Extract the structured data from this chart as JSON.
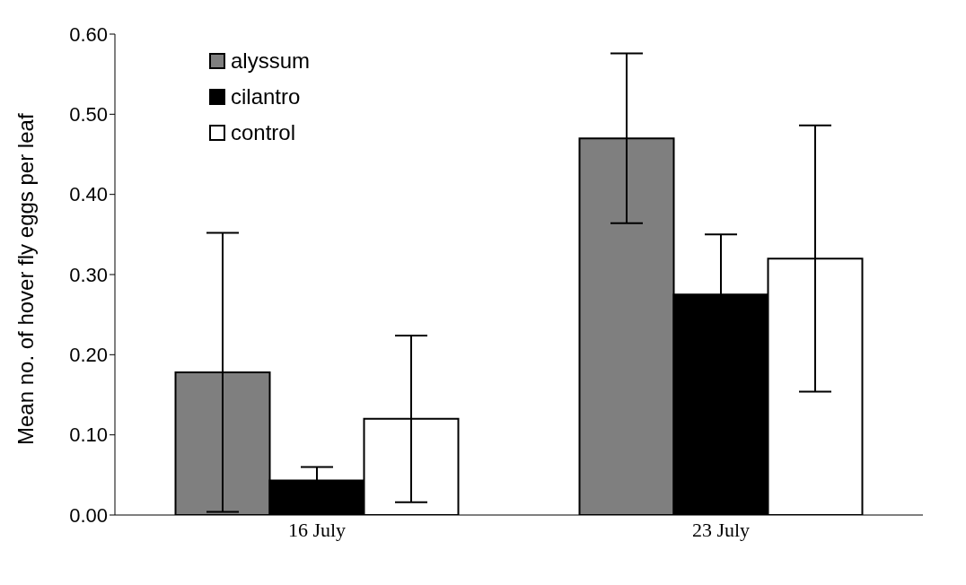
{
  "chart_data": {
    "type": "bar",
    "ylabel": "Mean no. of hover fly eggs per leaf",
    "categories": [
      "16 July",
      "23 July"
    ],
    "series": [
      {
        "name": "alyssum",
        "color": "#7f7f7f",
        "values": [
          0.178,
          0.47
        ],
        "errors": [
          0.174,
          0.106
        ]
      },
      {
        "name": "cilantro",
        "color": "#000000",
        "values": [
          0.043,
          0.275
        ],
        "errors": [
          0.017,
          0.075
        ]
      },
      {
        "name": "control",
        "color": "#ffffff",
        "values": [
          0.12,
          0.32
        ],
        "errors": [
          0.104,
          0.166
        ]
      }
    ],
    "ylim": [
      0,
      0.6
    ],
    "yticks": [
      {
        "value": 0,
        "label": "0.00"
      },
      {
        "value": 0.1,
        "label": "0.10"
      },
      {
        "value": 0.2,
        "label": "0.20"
      },
      {
        "value": 0.3,
        "label": "0.30"
      },
      {
        "value": 0.4,
        "label": "0.40"
      },
      {
        "value": 0.5,
        "label": "0.50"
      },
      {
        "value": 0.6,
        "label": "0.60"
      }
    ],
    "legend": "top left",
    "grid": false
  }
}
